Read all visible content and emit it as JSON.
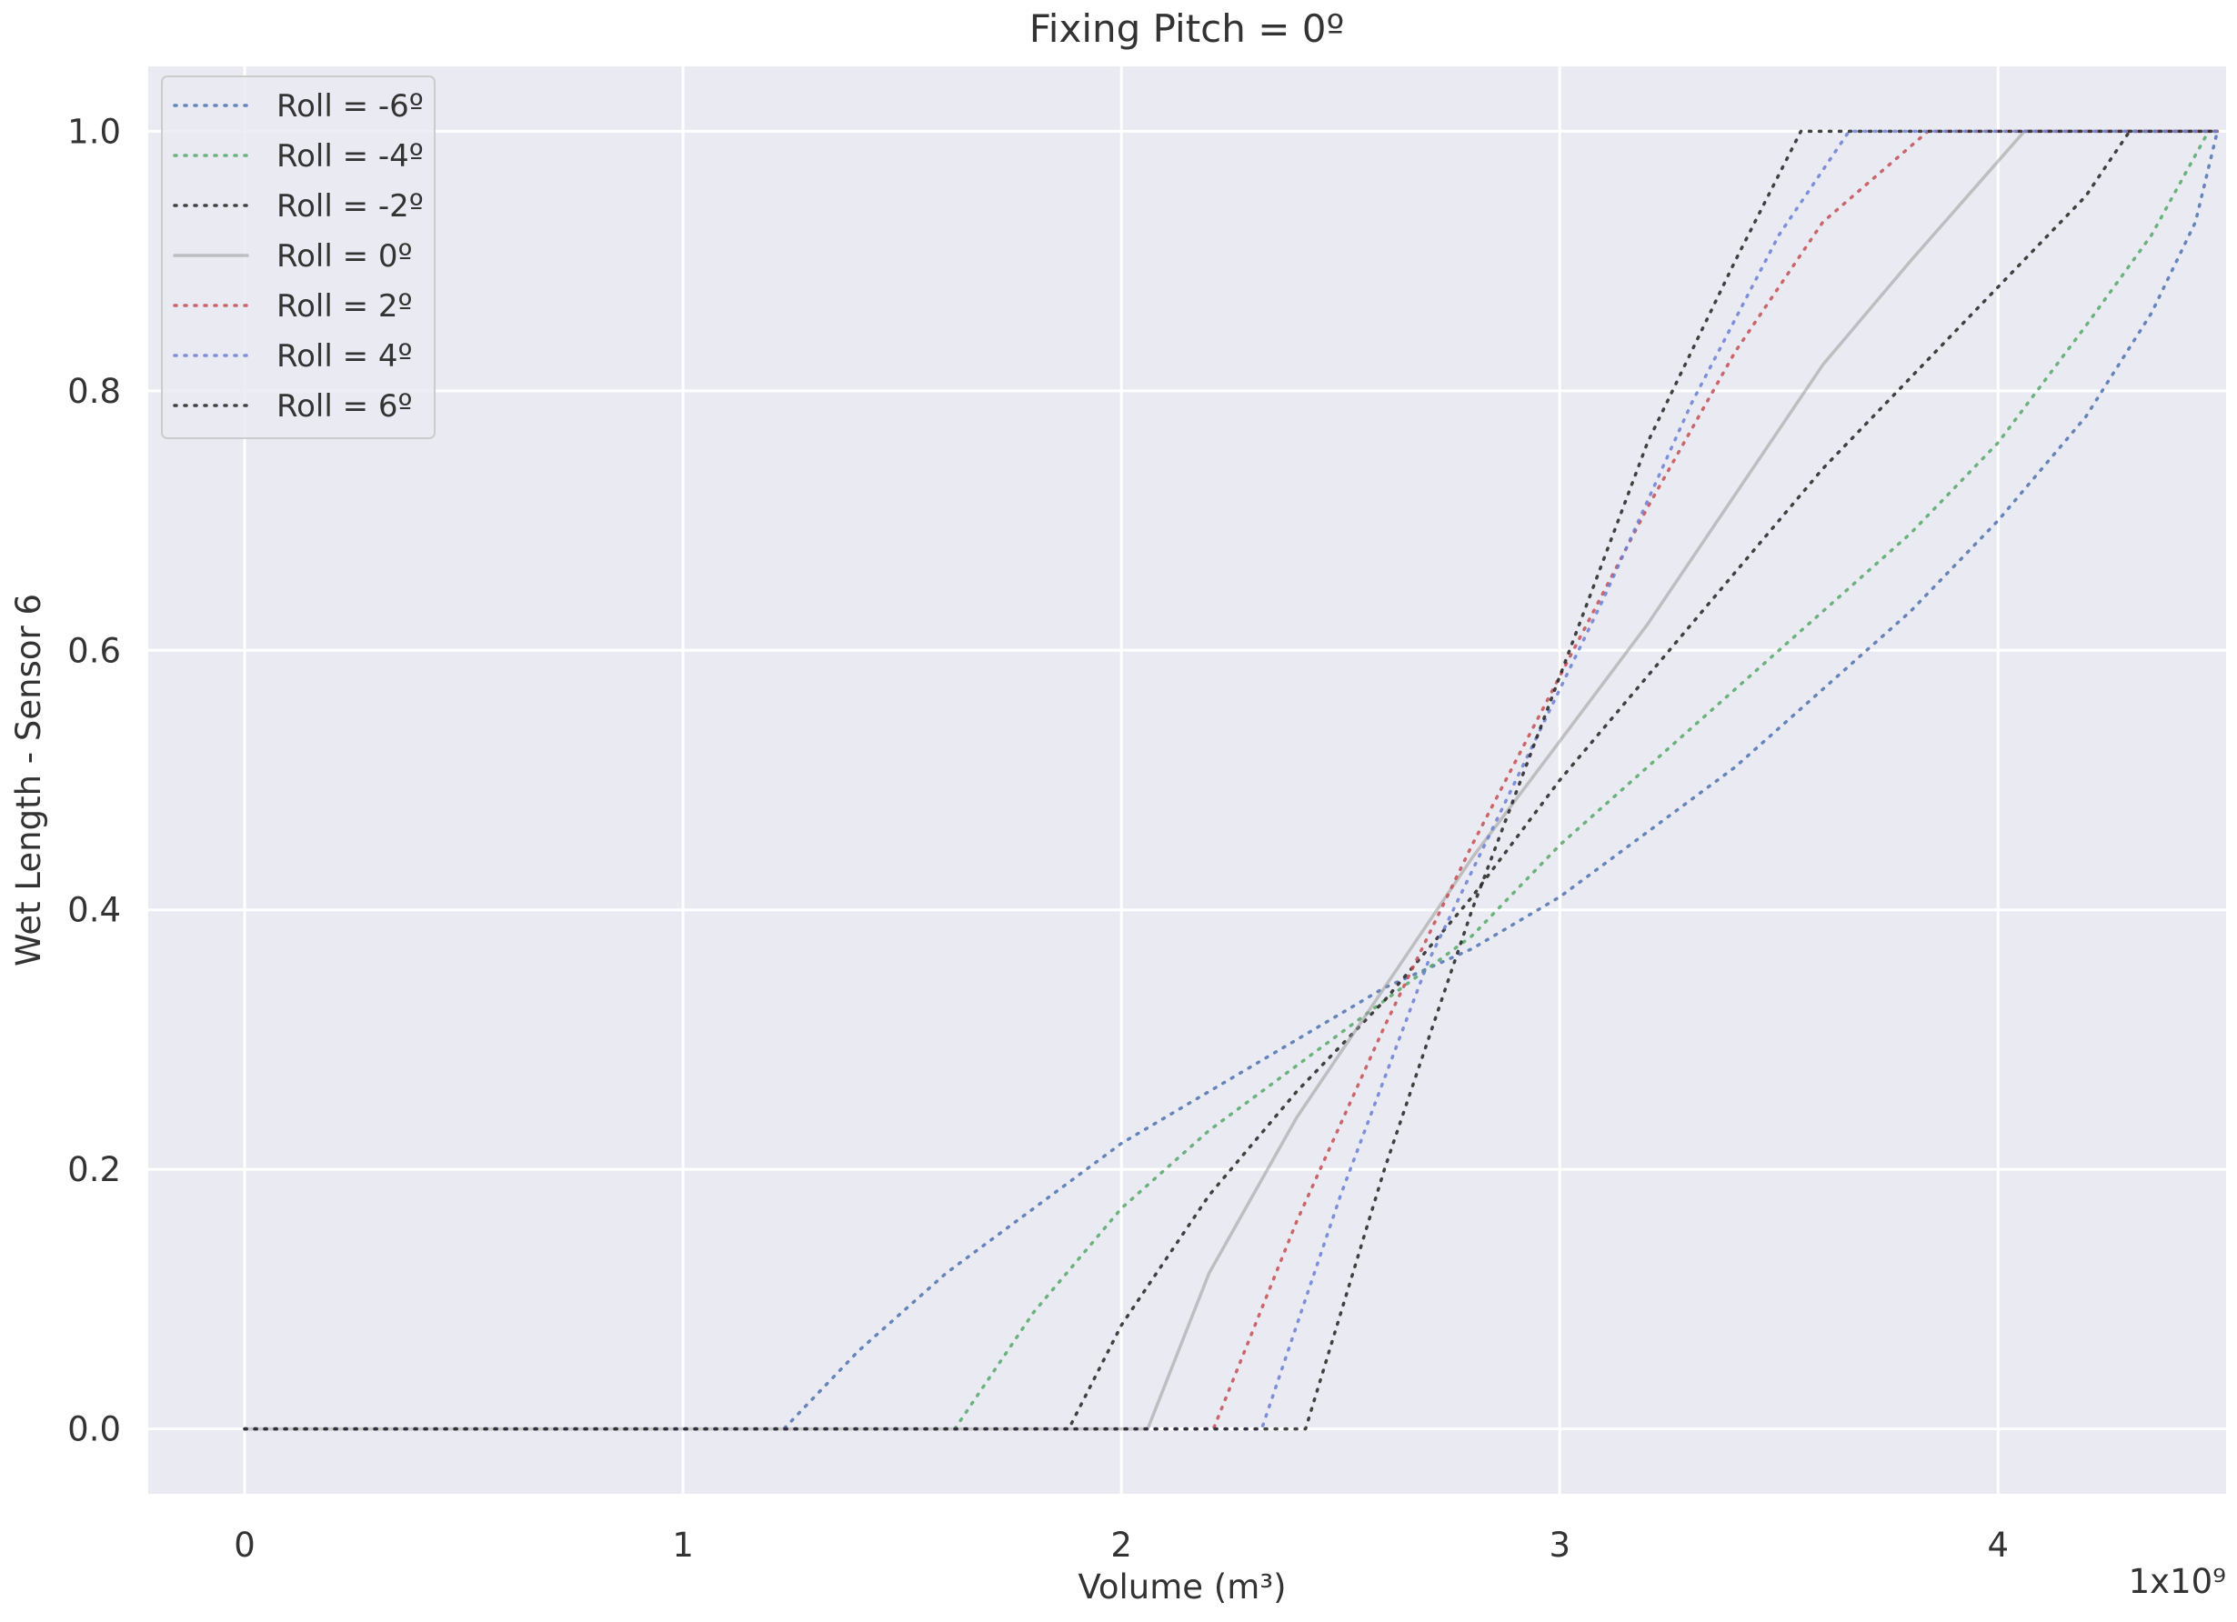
{
  "chart_data": {
    "type": "line",
    "title": "Fixing Pitch = 0º",
    "xlabel": "Volume (m³)",
    "ylabel": "Wet Length - Sensor 6",
    "x_offset_label": "1x10⁹",
    "xlim": [
      -0.22,
      4.52
    ],
    "ylim": [
      -0.05,
      1.05
    ],
    "xticks": [
      0,
      1,
      2,
      3,
      4
    ],
    "xtick_labels": [
      "0",
      "1",
      "2",
      "3",
      "4"
    ],
    "yticks": [
      0.0,
      0.2,
      0.4,
      0.6,
      0.8,
      1.0
    ],
    "ytick_labels": [
      "0.0",
      "0.2",
      "0.4",
      "0.6",
      "0.8",
      "1.0"
    ],
    "grid": true,
    "legend_position": "top-left",
    "series": [
      {
        "name": "Roll = -6º",
        "color": "#4c72b0",
        "style": "dotted",
        "points": [
          [
            0,
            0
          ],
          [
            1.23,
            0
          ],
          [
            1.4,
            0.06
          ],
          [
            1.6,
            0.12
          ],
          [
            1.8,
            0.17
          ],
          [
            2.0,
            0.22
          ],
          [
            2.2,
            0.26
          ],
          [
            2.4,
            0.3
          ],
          [
            2.6,
            0.34
          ],
          [
            2.8,
            0.37
          ],
          [
            3.0,
            0.41
          ],
          [
            3.2,
            0.46
          ],
          [
            3.4,
            0.51
          ],
          [
            3.6,
            0.57
          ],
          [
            3.8,
            0.63
          ],
          [
            4.0,
            0.7
          ],
          [
            4.2,
            0.78
          ],
          [
            4.35,
            0.86
          ],
          [
            4.45,
            0.93
          ],
          [
            4.5,
            1.0
          ]
        ]
      },
      {
        "name": "Roll = -4º",
        "color": "#55a868",
        "style": "dotted",
        "points": [
          [
            0,
            0
          ],
          [
            1.62,
            0
          ],
          [
            1.8,
            0.09
          ],
          [
            2.0,
            0.17
          ],
          [
            2.2,
            0.23
          ],
          [
            2.4,
            0.28
          ],
          [
            2.6,
            0.33
          ],
          [
            2.8,
            0.38
          ],
          [
            3.0,
            0.45
          ],
          [
            3.2,
            0.51
          ],
          [
            3.4,
            0.57
          ],
          [
            3.6,
            0.63
          ],
          [
            3.8,
            0.69
          ],
          [
            4.0,
            0.76
          ],
          [
            4.2,
            0.85
          ],
          [
            4.35,
            0.92
          ],
          [
            4.48,
            1.0
          ]
        ]
      },
      {
        "name": "Roll = -2º",
        "color": "#222222",
        "style": "dotted",
        "points": [
          [
            0,
            0
          ],
          [
            1.88,
            0
          ],
          [
            2.0,
            0.08
          ],
          [
            2.2,
            0.18
          ],
          [
            2.4,
            0.26
          ],
          [
            2.6,
            0.33
          ],
          [
            2.8,
            0.41
          ],
          [
            3.0,
            0.5
          ],
          [
            3.2,
            0.58
          ],
          [
            3.4,
            0.66
          ],
          [
            3.6,
            0.74
          ],
          [
            3.8,
            0.81
          ],
          [
            4.0,
            0.88
          ],
          [
            4.2,
            0.95
          ],
          [
            4.3,
            1.0
          ],
          [
            4.5,
            1.0
          ]
        ]
      },
      {
        "name": "Roll = 0º",
        "color": "#999999",
        "style": "solid",
        "points": [
          [
            0,
            0
          ],
          [
            2.06,
            0
          ],
          [
            2.2,
            0.12
          ],
          [
            2.4,
            0.24
          ],
          [
            2.6,
            0.34
          ],
          [
            2.8,
            0.44
          ],
          [
            3.0,
            0.53
          ],
          [
            3.2,
            0.62
          ],
          [
            3.4,
            0.72
          ],
          [
            3.6,
            0.82
          ],
          [
            3.8,
            0.9
          ],
          [
            4.06,
            1.0
          ],
          [
            4.5,
            1.0
          ]
        ]
      },
      {
        "name": "Roll = 2º",
        "color": "#c44e52",
        "style": "dotted",
        "points": [
          [
            0,
            0
          ],
          [
            2.21,
            0
          ],
          [
            2.4,
            0.16
          ],
          [
            2.6,
            0.31
          ],
          [
            2.8,
            0.45
          ],
          [
            3.0,
            0.58
          ],
          [
            3.2,
            0.71
          ],
          [
            3.4,
            0.83
          ],
          [
            3.6,
            0.93
          ],
          [
            3.84,
            1.0
          ],
          [
            4.5,
            1.0
          ]
        ]
      },
      {
        "name": "Roll = 4º",
        "color": "#6a7fd4",
        "style": "dotted",
        "points": [
          [
            0,
            0
          ],
          [
            2.32,
            0
          ],
          [
            2.5,
            0.18
          ],
          [
            2.7,
            0.36
          ],
          [
            2.9,
            0.5
          ],
          [
            3.1,
            0.64
          ],
          [
            3.3,
            0.79
          ],
          [
            3.5,
            0.92
          ],
          [
            3.66,
            1.0
          ],
          [
            4.5,
            1.0
          ]
        ]
      },
      {
        "name": "Roll = 6º",
        "color": "#222222",
        "style": "dotted",
        "points": [
          [
            0,
            0
          ],
          [
            2.42,
            0
          ],
          [
            2.6,
            0.2
          ],
          [
            2.8,
            0.4
          ],
          [
            3.0,
            0.58
          ],
          [
            3.2,
            0.76
          ],
          [
            3.4,
            0.9
          ],
          [
            3.55,
            1.0
          ],
          [
            4.5,
            1.0
          ]
        ]
      }
    ]
  }
}
